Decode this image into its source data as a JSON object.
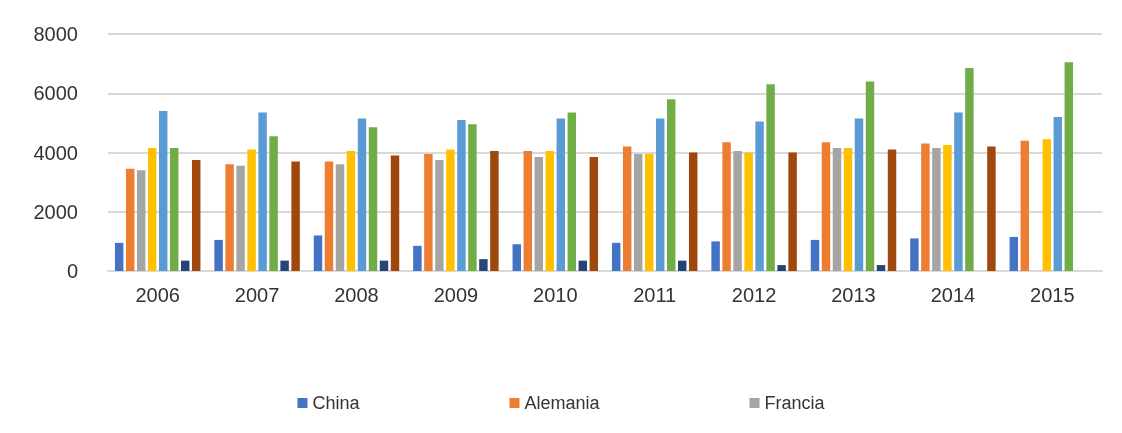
{
  "chart_data": {
    "type": "bar",
    "categories": [
      "2006",
      "2007",
      "2008",
      "2009",
      "2010",
      "2011",
      "2012",
      "2013",
      "2014",
      "2015"
    ],
    "series": [
      {
        "name": "China",
        "color": "#4472c4",
        "values": [
          950,
          1050,
          1200,
          850,
          900,
          950,
          1000,
          1050,
          1100,
          1150
        ]
      },
      {
        "name": "Alemania",
        "color": "#ed7d31",
        "values": [
          3450,
          3600,
          3700,
          3950,
          4050,
          4200,
          4350,
          4350,
          4300,
          4400
        ]
      },
      {
        "name": "Francia",
        "color": "#a5a5a5",
        "values": [
          3400,
          3550,
          3600,
          3750,
          3850,
          3950,
          4050,
          4150,
          4150,
          null
        ]
      },
      {
        "color": "#ffc000",
        "values": [
          4150,
          4100,
          4050,
          4100,
          4050,
          3950,
          4000,
          4150,
          4250,
          4450
        ]
      },
      {
        "color": "#5b9bd5",
        "values": [
          5400,
          5350,
          5150,
          5100,
          5150,
          5150,
          5050,
          5150,
          5350,
          5200
        ]
      },
      {
        "color": "#70ad47",
        "values": [
          4150,
          4550,
          4850,
          4950,
          5350,
          5800,
          6300,
          6400,
          6850,
          7050
        ]
      },
      {
        "color": "#264478",
        "values": [
          350,
          350,
          350,
          400,
          350,
          350,
          200,
          200,
          null,
          null
        ]
      },
      {
        "color": "#9e480e",
        "values": [
          3750,
          3700,
          3900,
          4050,
          3850,
          4000,
          4000,
          4100,
          4200,
          null
        ]
      }
    ],
    "ylim": [
      0,
      8000
    ],
    "yticks": [
      0,
      2000,
      4000,
      6000,
      8000
    ],
    "grid": "y",
    "legend": "bottom"
  }
}
